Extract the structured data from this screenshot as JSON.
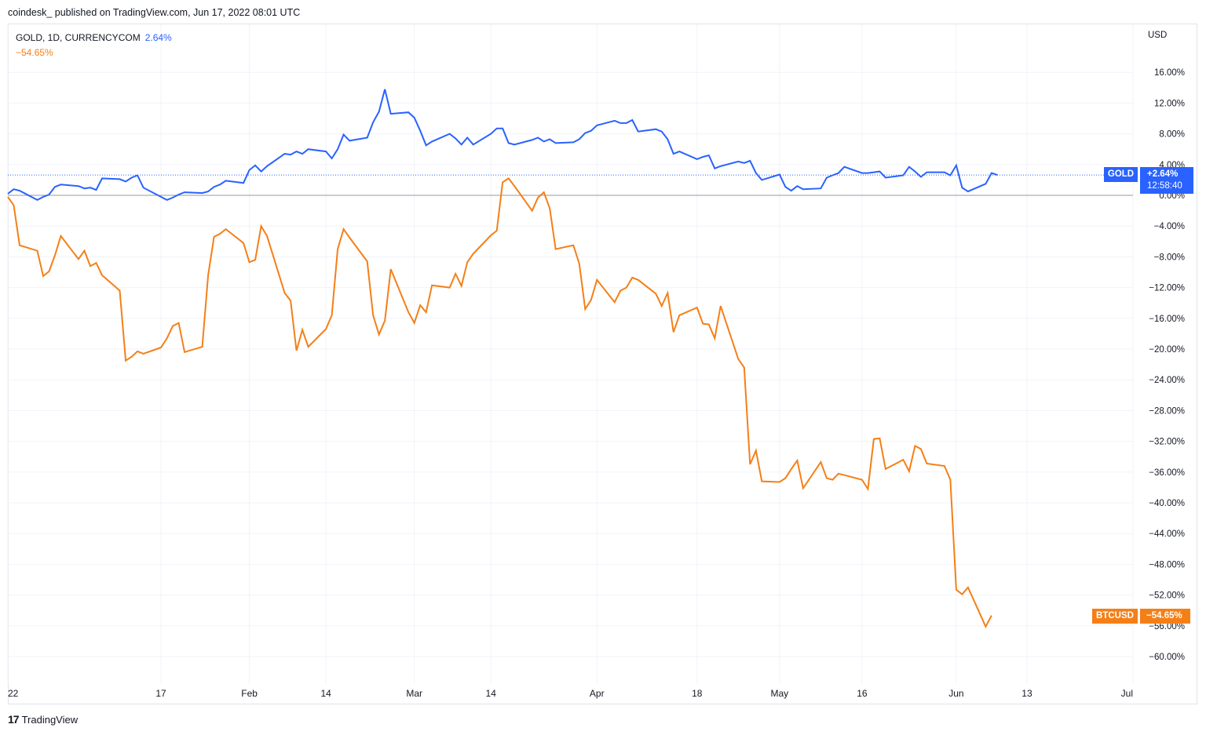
{
  "header": {
    "publish_line": "coindesk_ published on TradingView.com, Jun 17, 2022 08:01 UTC"
  },
  "legend": {
    "gold_label": "GOLD, 1D, CURRENCYCOM",
    "gold_value": "2.64%",
    "btc_value": "−54.65%"
  },
  "axis": {
    "currency": "USD",
    "y_ticks": [
      "16.00%",
      "12.00%",
      "8.00%",
      "4.00%",
      "0.00%",
      "−4.00%",
      "−8.00%",
      "−12.00%",
      "−16.00%",
      "−20.00%",
      "−24.00%",
      "−28.00%",
      "−32.00%",
      "−36.00%",
      "−40.00%",
      "−44.00%",
      "−48.00%",
      "−52.00%",
      "−56.00%",
      "−60.00%"
    ],
    "x_ticks": [
      "22",
      "17",
      "Feb",
      "14",
      "Mar",
      "14",
      "Apr",
      "18",
      "May",
      "16",
      "Jun",
      "13",
      "Jul"
    ]
  },
  "tags": {
    "gold_name": "GOLD",
    "gold_value": "+2.64%",
    "gold_countdown": "12:58:40",
    "btc_name": "BTCUSD",
    "btc_value": "−54.65%"
  },
  "footer": {
    "brand": "TradingView"
  },
  "colors": {
    "gold": "#2962ff",
    "btc": "#f57f17",
    "grid": "#f0f3fa",
    "zero": "#9598a1"
  },
  "chart_data": {
    "type": "line",
    "y_unit": "%",
    "ylim": [
      -62,
      20
    ],
    "x_range": [
      "2021-12-22",
      "2022-07-01"
    ],
    "grid": true,
    "series": [
      {
        "name": "GOLD",
        "color": "#2962ff",
        "points": [
          [
            "2021-12-22",
            0.2
          ],
          [
            "2021-12-23",
            0.8
          ],
          [
            "2021-12-24",
            0.6
          ],
          [
            "2021-12-27",
            -0.6
          ],
          [
            "2021-12-28",
            -0.2
          ],
          [
            "2021-12-29",
            0.1
          ],
          [
            "2021-12-30",
            1.1
          ],
          [
            "2021-12-31",
            1.4
          ],
          [
            "2022-01-03",
            1.2
          ],
          [
            "2022-01-04",
            0.9
          ],
          [
            "2022-01-05",
            1.0
          ],
          [
            "2022-01-06",
            0.7
          ],
          [
            "2022-01-07",
            2.2
          ],
          [
            "2022-01-10",
            2.1
          ],
          [
            "2022-01-11",
            1.8
          ],
          [
            "2022-01-12",
            2.3
          ],
          [
            "2022-01-13",
            2.6
          ],
          [
            "2022-01-14",
            1.0
          ],
          [
            "2022-01-17",
            -0.2
          ],
          [
            "2022-01-18",
            -0.6
          ],
          [
            "2022-01-19",
            -0.3
          ],
          [
            "2022-01-20",
            0.1
          ],
          [
            "2022-01-21",
            0.4
          ],
          [
            "2022-01-24",
            0.3
          ],
          [
            "2022-01-25",
            0.5
          ],
          [
            "2022-01-26",
            1.1
          ],
          [
            "2022-01-27",
            1.4
          ],
          [
            "2022-01-28",
            1.9
          ],
          [
            "2022-01-31",
            1.6
          ],
          [
            "2022-02-01",
            3.3
          ],
          [
            "2022-02-02",
            3.9
          ],
          [
            "2022-02-03",
            3.1
          ],
          [
            "2022-02-04",
            3.8
          ],
          [
            "2022-02-07",
            5.4
          ],
          [
            "2022-02-08",
            5.3
          ],
          [
            "2022-02-09",
            5.7
          ],
          [
            "2022-02-10",
            5.4
          ],
          [
            "2022-02-11",
            6.0
          ],
          [
            "2022-02-14",
            5.7
          ],
          [
            "2022-02-15",
            4.8
          ],
          [
            "2022-02-16",
            6.0
          ],
          [
            "2022-02-17",
            7.9
          ],
          [
            "2022-02-18",
            7.1
          ],
          [
            "2022-02-21",
            7.5
          ],
          [
            "2022-02-22",
            9.5
          ],
          [
            "2022-02-23",
            10.9
          ],
          [
            "2022-02-24",
            13.8
          ],
          [
            "2022-02-25",
            10.6
          ],
          [
            "2022-02-28",
            10.8
          ],
          [
            "2022-03-01",
            10.1
          ],
          [
            "2022-03-02",
            8.4
          ],
          [
            "2022-03-03",
            6.5
          ],
          [
            "2022-03-04",
            7.0
          ],
          [
            "2022-03-07",
            8.0
          ],
          [
            "2022-03-08",
            7.4
          ],
          [
            "2022-03-09",
            6.6
          ],
          [
            "2022-03-10",
            7.5
          ],
          [
            "2022-03-11",
            6.6
          ],
          [
            "2022-03-14",
            8.0
          ],
          [
            "2022-03-15",
            8.7
          ],
          [
            "2022-03-16",
            8.7
          ],
          [
            "2022-03-17",
            6.8
          ],
          [
            "2022-03-18",
            6.6
          ],
          [
            "2022-03-21",
            7.2
          ],
          [
            "2022-03-22",
            7.5
          ],
          [
            "2022-03-23",
            7.0
          ],
          [
            "2022-03-24",
            7.3
          ],
          [
            "2022-03-25",
            6.8
          ],
          [
            "2022-03-28",
            6.9
          ],
          [
            "2022-03-29",
            7.3
          ],
          [
            "2022-03-30",
            8.1
          ],
          [
            "2022-03-31",
            8.4
          ],
          [
            "2022-04-01",
            9.1
          ],
          [
            "2022-04-04",
            9.7
          ],
          [
            "2022-04-05",
            9.4
          ],
          [
            "2022-04-06",
            9.4
          ],
          [
            "2022-04-07",
            9.8
          ],
          [
            "2022-04-08",
            8.3
          ],
          [
            "2022-04-11",
            8.6
          ],
          [
            "2022-04-12",
            8.3
          ],
          [
            "2022-04-13",
            7.3
          ],
          [
            "2022-04-14",
            5.4
          ],
          [
            "2022-04-15",
            5.7
          ],
          [
            "2022-04-18",
            4.7
          ],
          [
            "2022-04-19",
            5.0
          ],
          [
            "2022-04-20",
            5.2
          ],
          [
            "2022-04-21",
            3.5
          ],
          [
            "2022-04-22",
            3.8
          ],
          [
            "2022-04-25",
            4.4
          ],
          [
            "2022-04-26",
            4.2
          ],
          [
            "2022-04-27",
            4.5
          ],
          [
            "2022-04-28",
            2.9
          ],
          [
            "2022-04-29",
            2.0
          ],
          [
            "2022-05-02",
            2.7
          ],
          [
            "2022-05-03",
            1.1
          ],
          [
            "2022-05-04",
            0.6
          ],
          [
            "2022-05-05",
            1.2
          ],
          [
            "2022-05-06",
            0.8
          ],
          [
            "2022-05-09",
            0.9
          ],
          [
            "2022-05-10",
            2.3
          ],
          [
            "2022-05-11",
            2.6
          ],
          [
            "2022-05-12",
            2.9
          ],
          [
            "2022-05-13",
            3.7
          ],
          [
            "2022-05-16",
            2.9
          ],
          [
            "2022-05-17",
            2.9
          ],
          [
            "2022-05-18",
            3.0
          ],
          [
            "2022-05-19",
            3.1
          ],
          [
            "2022-05-20",
            2.3
          ],
          [
            "2022-05-23",
            2.6
          ],
          [
            "2022-05-24",
            3.7
          ],
          [
            "2022-05-25",
            3.1
          ],
          [
            "2022-05-26",
            2.4
          ],
          [
            "2022-05-27",
            3.0
          ],
          [
            "2022-05-30",
            3.0
          ],
          [
            "2022-05-31",
            2.6
          ],
          [
            "2022-06-01",
            3.9
          ],
          [
            "2022-06-02",
            1.0
          ],
          [
            "2022-06-03",
            0.5
          ],
          [
            "2022-06-06",
            1.5
          ],
          [
            "2022-06-07",
            2.9
          ],
          [
            "2022-06-08",
            2.64
          ]
        ]
      },
      {
        "name": "BTCUSD",
        "color": "#f57f17",
        "points": [
          [
            "2021-12-22",
            -0.2
          ],
          [
            "2021-12-23",
            -1.3
          ],
          [
            "2021-12-24",
            -6.5
          ],
          [
            "2021-12-27",
            -7.2
          ],
          [
            "2021-12-28",
            -10.5
          ],
          [
            "2021-12-29",
            -9.9
          ],
          [
            "2021-12-30",
            -7.8
          ],
          [
            "2021-12-31",
            -5.3
          ],
          [
            "2022-01-03",
            -8.3
          ],
          [
            "2022-01-04",
            -7.2
          ],
          [
            "2022-01-05",
            -9.2
          ],
          [
            "2022-01-06",
            -8.8
          ],
          [
            "2022-01-07",
            -10.4
          ],
          [
            "2022-01-10",
            -12.4
          ],
          [
            "2022-01-11",
            -21.5
          ],
          [
            "2022-01-12",
            -21.0
          ],
          [
            "2022-01-13",
            -20.3
          ],
          [
            "2022-01-14",
            -20.6
          ],
          [
            "2022-01-17",
            -19.8
          ],
          [
            "2022-01-18",
            -18.6
          ],
          [
            "2022-01-19",
            -17.0
          ],
          [
            "2022-01-20",
            -16.6
          ],
          [
            "2022-01-21",
            -20.4
          ],
          [
            "2022-01-24",
            -19.7
          ],
          [
            "2022-01-25",
            -10.4
          ],
          [
            "2022-01-26",
            -5.4
          ],
          [
            "2022-01-27",
            -5.0
          ],
          [
            "2022-01-28",
            -4.4
          ],
          [
            "2022-01-31",
            -6.2
          ],
          [
            "2022-02-01",
            -8.7
          ],
          [
            "2022-02-02",
            -8.4
          ],
          [
            "2022-02-03",
            -4.0
          ],
          [
            "2022-02-04",
            -5.3
          ],
          [
            "2022-02-07",
            -12.7
          ],
          [
            "2022-02-08",
            -13.7
          ],
          [
            "2022-02-09",
            -20.2
          ],
          [
            "2022-02-10",
            -17.5
          ],
          [
            "2022-02-11",
            -19.7
          ],
          [
            "2022-02-14",
            -17.4
          ],
          [
            "2022-02-15",
            -15.6
          ],
          [
            "2022-02-16",
            -7.0
          ],
          [
            "2022-02-17",
            -4.4
          ],
          [
            "2022-02-18",
            -5.5
          ],
          [
            "2022-02-21",
            -8.6
          ],
          [
            "2022-02-22",
            -15.6
          ],
          [
            "2022-02-23",
            -18.1
          ],
          [
            "2022-02-24",
            -16.3
          ],
          [
            "2022-02-25",
            -9.6
          ],
          [
            "2022-02-28",
            -15.2
          ],
          [
            "2022-03-01",
            -16.6
          ],
          [
            "2022-03-02",
            -14.3
          ],
          [
            "2022-03-03",
            -15.2
          ],
          [
            "2022-03-04",
            -11.7
          ],
          [
            "2022-03-07",
            -12.0
          ],
          [
            "2022-03-08",
            -10.2
          ],
          [
            "2022-03-09",
            -11.8
          ],
          [
            "2022-03-10",
            -8.7
          ],
          [
            "2022-03-11",
            -7.6
          ],
          [
            "2022-03-14",
            -5.2
          ],
          [
            "2022-03-15",
            -4.6
          ],
          [
            "2022-03-16",
            1.7
          ],
          [
            "2022-03-17",
            2.2
          ],
          [
            "2022-03-18",
            1.2
          ],
          [
            "2022-03-21",
            -2.0
          ],
          [
            "2022-03-22",
            -0.3
          ],
          [
            "2022-03-23",
            0.4
          ],
          [
            "2022-03-24",
            -1.7
          ],
          [
            "2022-03-25",
            -7.0
          ],
          [
            "2022-03-28",
            -6.5
          ],
          [
            "2022-03-29",
            -8.9
          ],
          [
            "2022-03-30",
            -14.8
          ],
          [
            "2022-03-31",
            -13.6
          ],
          [
            "2022-04-01",
            -11.0
          ],
          [
            "2022-04-04",
            -13.9
          ],
          [
            "2022-04-05",
            -12.4
          ],
          [
            "2022-04-06",
            -12.0
          ],
          [
            "2022-04-07",
            -10.7
          ],
          [
            "2022-04-08",
            -11.0
          ],
          [
            "2022-04-11",
            -12.8
          ],
          [
            "2022-04-12",
            -14.4
          ],
          [
            "2022-04-13",
            -12.7
          ],
          [
            "2022-04-14",
            -17.8
          ],
          [
            "2022-04-15",
            -15.6
          ],
          [
            "2022-04-18",
            -14.6
          ],
          [
            "2022-04-19",
            -16.7
          ],
          [
            "2022-04-20",
            -16.8
          ],
          [
            "2022-04-21",
            -18.6
          ],
          [
            "2022-04-22",
            -14.4
          ],
          [
            "2022-04-25",
            -21.3
          ],
          [
            "2022-04-26",
            -22.4
          ],
          [
            "2022-04-27",
            -35.0
          ],
          [
            "2022-04-28",
            -33.2
          ],
          [
            "2022-04-29",
            -37.2
          ],
          [
            "2022-05-02",
            -37.3
          ],
          [
            "2022-05-03",
            -36.8
          ],
          [
            "2022-05-04",
            -35.6
          ],
          [
            "2022-05-05",
            -34.5
          ],
          [
            "2022-05-06",
            -38.1
          ],
          [
            "2022-05-09",
            -34.7
          ],
          [
            "2022-05-10",
            -36.8
          ],
          [
            "2022-05-11",
            -37.0
          ],
          [
            "2022-05-12",
            -36.2
          ],
          [
            "2022-05-13",
            -36.4
          ],
          [
            "2022-05-16",
            -37.0
          ],
          [
            "2022-05-17",
            -38.2
          ],
          [
            "2022-05-18",
            -31.7
          ],
          [
            "2022-05-19",
            -31.6
          ],
          [
            "2022-05-20",
            -35.6
          ],
          [
            "2022-05-23",
            -34.4
          ],
          [
            "2022-05-24",
            -35.9
          ],
          [
            "2022-05-25",
            -32.6
          ],
          [
            "2022-05-26",
            -33.0
          ],
          [
            "2022-05-27",
            -34.9
          ],
          [
            "2022-05-30",
            -35.2
          ],
          [
            "2022-05-31",
            -37.0
          ],
          [
            "2022-06-01",
            -51.3
          ],
          [
            "2022-06-02",
            -51.9
          ],
          [
            "2022-06-03",
            -51.0
          ],
          [
            "2022-06-06",
            -56.1
          ],
          [
            "2022-06-07",
            -54.65
          ]
        ]
      }
    ]
  }
}
